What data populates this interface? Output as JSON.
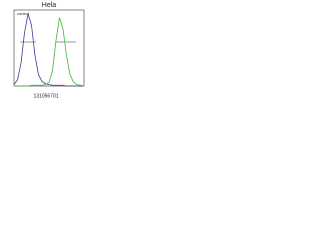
{
  "chart_data": {
    "type": "line",
    "title": "Hela",
    "annotation": "control",
    "footer": "131056701",
    "x": [
      0,
      5,
      10,
      15,
      20,
      25,
      30,
      35,
      40,
      45,
      50,
      55,
      60,
      65,
      70,
      75,
      80,
      85,
      90,
      95,
      100
    ],
    "series": [
      {
        "name": "control",
        "color": "#3a3aa8",
        "values": [
          2,
          8,
          30,
          70,
          95,
          80,
          40,
          15,
          6,
          3,
          2,
          1,
          1,
          1,
          1,
          0,
          0,
          0,
          0,
          0,
          0
        ]
      },
      {
        "name": "Hela",
        "color": "#3cb93c",
        "values": [
          0,
          0,
          0,
          0,
          0,
          1,
          1,
          1,
          1,
          2,
          5,
          20,
          60,
          90,
          75,
          40,
          15,
          5,
          2,
          1,
          0
        ]
      }
    ],
    "xlim": [
      0,
      100
    ],
    "ylim": [
      0,
      100
    ]
  }
}
